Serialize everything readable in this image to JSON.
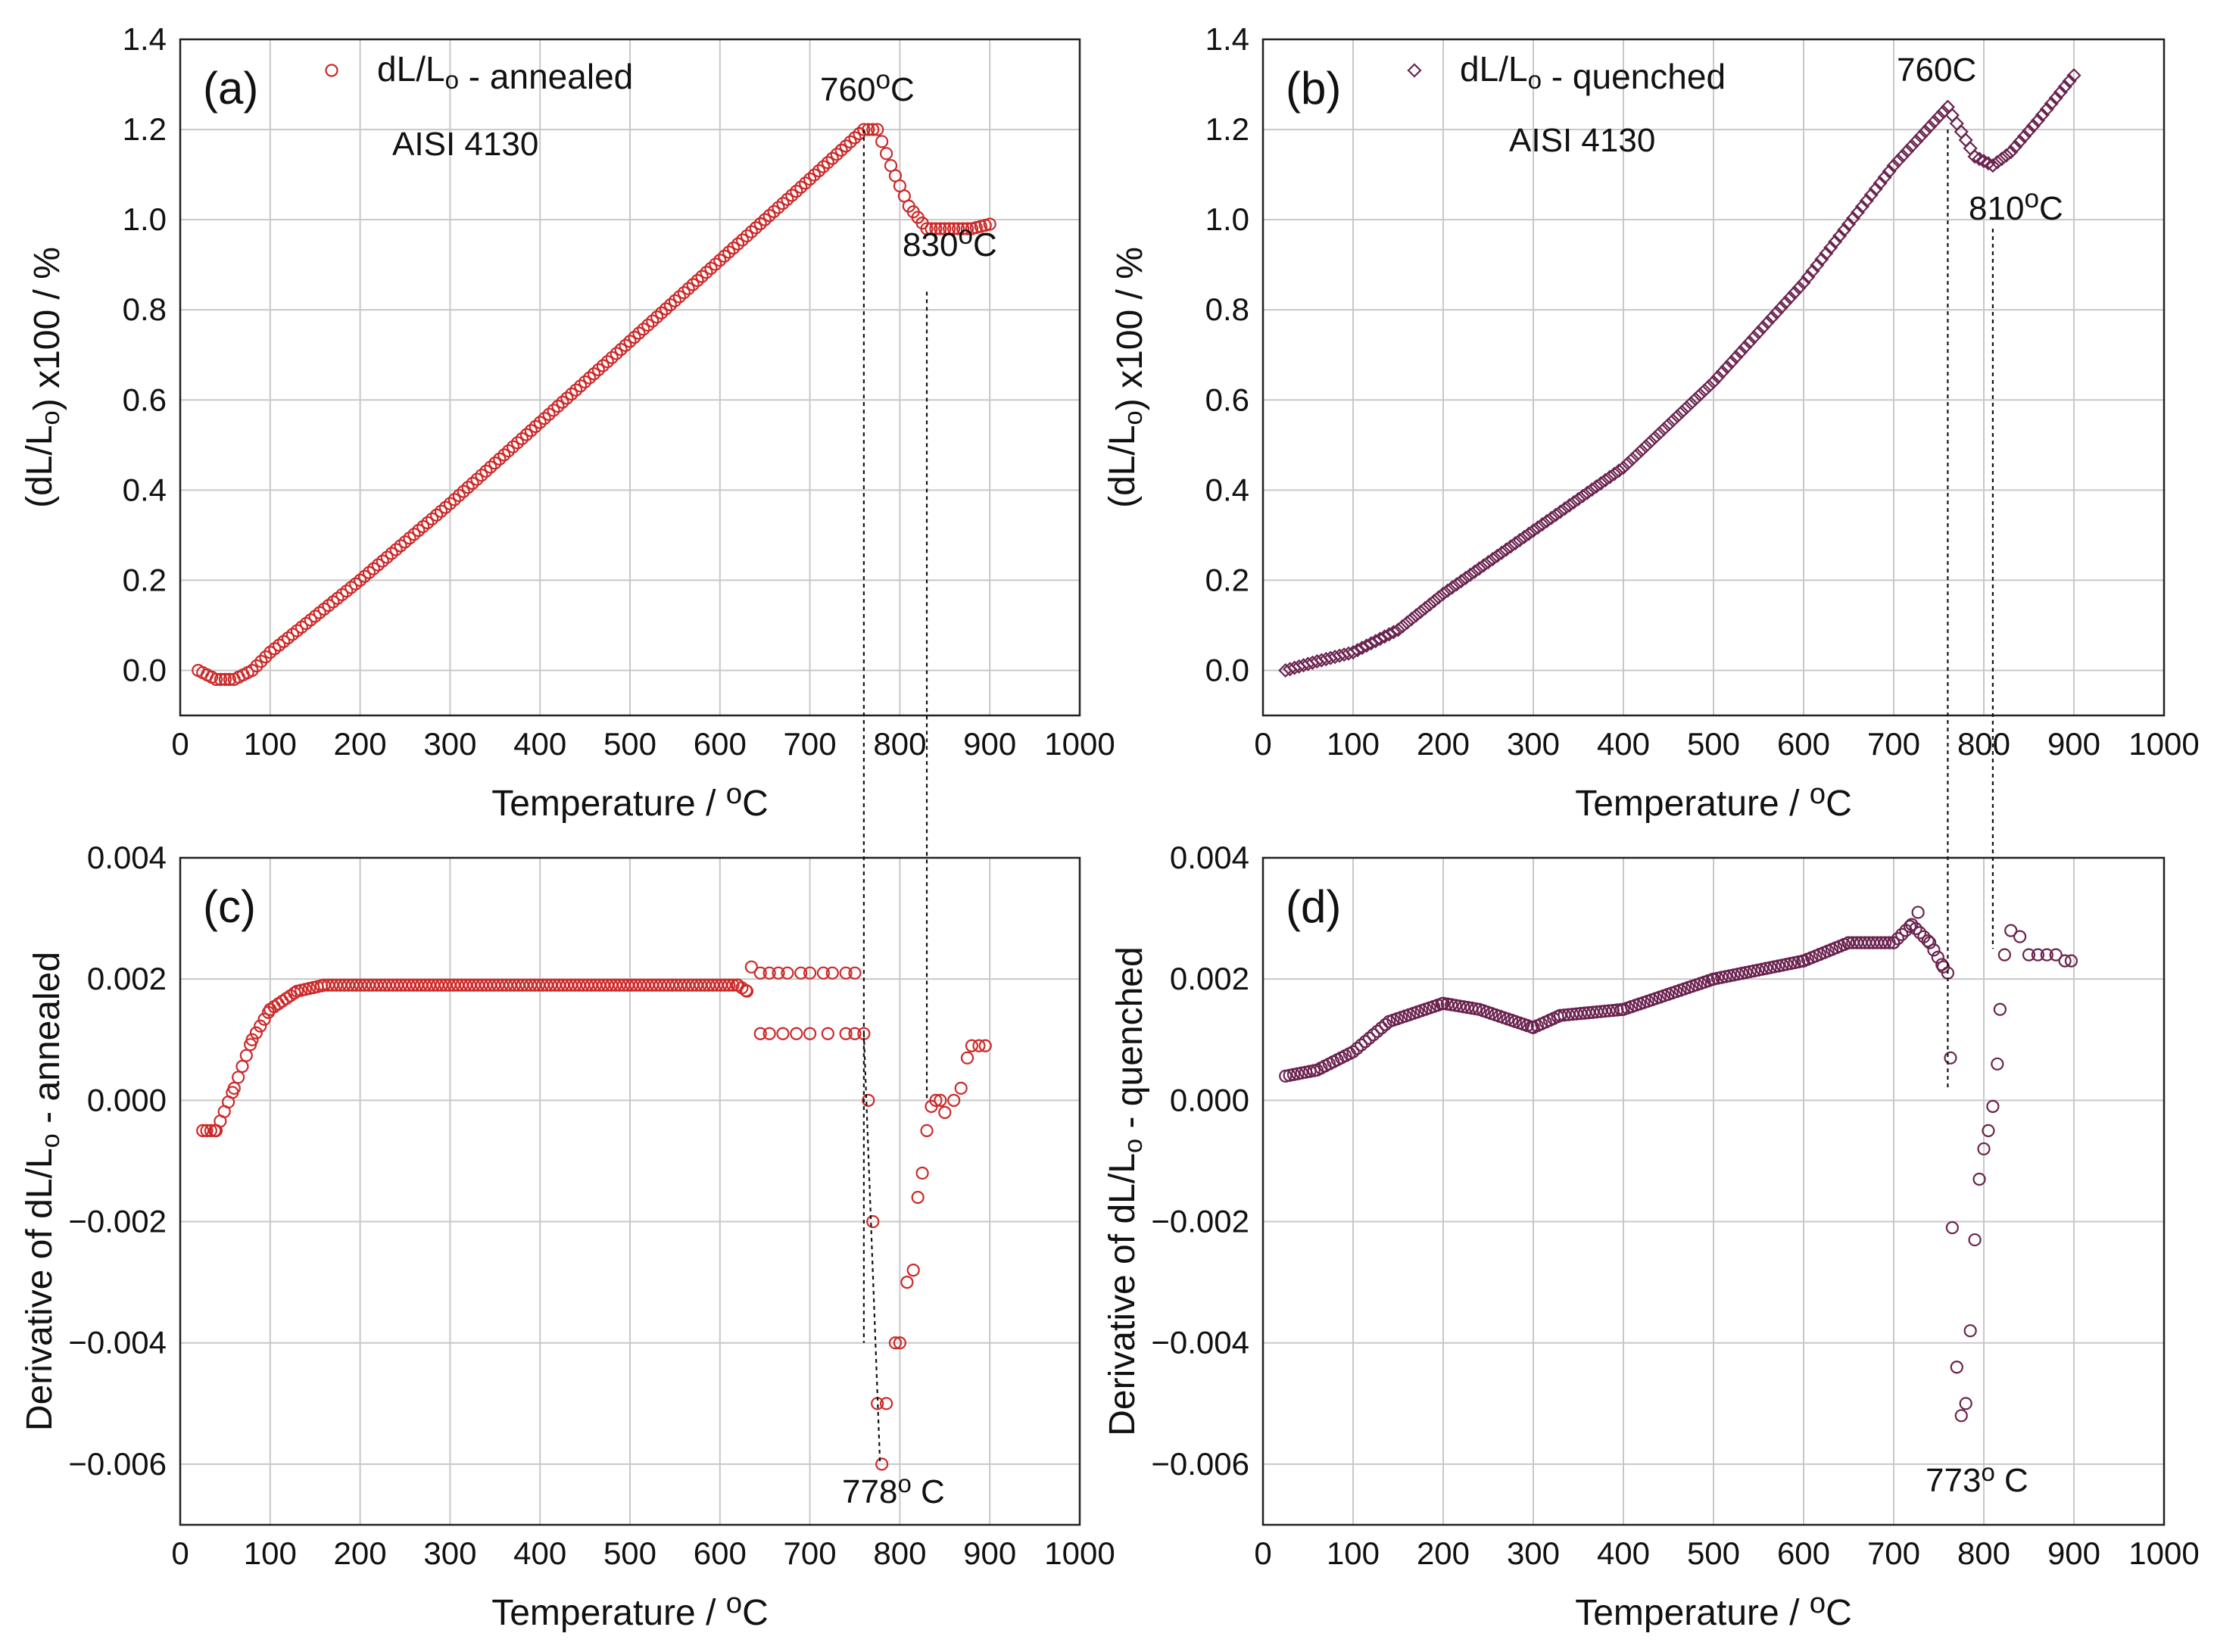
{
  "colors": {
    "annealed": "#cc2a2a",
    "quenched": "#6b2450",
    "grid": "#c8c8c8",
    "text": "#111111"
  },
  "chart_data": [
    {
      "id": "a",
      "type": "scatter",
      "panel_label": "(a)",
      "legend": "dL/Lo - annealed",
      "marker": "circle",
      "xlabel": "Temperature  / oC",
      "ylabel": "(dL/Lo) x100  / %",
      "xlim": [
        0,
        1000
      ],
      "ylim": [
        -0.1,
        1.4
      ],
      "xticks": [
        "0",
        "100",
        "200",
        "300",
        "400",
        "500",
        "600",
        "700",
        "800",
        "900",
        "1000"
      ],
      "yticks": [
        "0.0",
        "0.2",
        "0.4",
        "0.6",
        "0.8",
        "1.0",
        "1.2",
        "1.4"
      ],
      "annotations": [
        "AISI 4130",
        "760oC",
        "830oC"
      ],
      "curve": [
        [
          20,
          0.0
        ],
        [
          40,
          -0.02
        ],
        [
          60,
          -0.02
        ],
        [
          80,
          0.0
        ],
        [
          100,
          0.04
        ],
        [
          150,
          0.12
        ],
        [
          200,
          0.2
        ],
        [
          300,
          0.37
        ],
        [
          400,
          0.55
        ],
        [
          500,
          0.73
        ],
        [
          600,
          0.91
        ],
        [
          700,
          1.09
        ],
        [
          760,
          1.2
        ],
        [
          775,
          1.2
        ],
        [
          790,
          1.12
        ],
        [
          810,
          1.03
        ],
        [
          830,
          0.98
        ],
        [
          850,
          0.98
        ],
        [
          880,
          0.98
        ],
        [
          900,
          0.99
        ]
      ],
      "guides": [
        [
          760,
          1.2,
          -0.004
        ],
        [
          830,
          0.84,
          0.0
        ]
      ]
    },
    {
      "id": "b",
      "type": "scatter",
      "panel_label": "(b)",
      "legend": "dL/Lo  - quenched",
      "marker": "diamond",
      "xlabel": "Temperature  / oC",
      "ylabel": "(dL/Lo) x100  / %",
      "xlim": [
        0,
        1000
      ],
      "ylim": [
        -0.1,
        1.4
      ],
      "xticks": [
        "0",
        "100",
        "200",
        "300",
        "400",
        "500",
        "600",
        "700",
        "800",
        "900",
        "1000"
      ],
      "yticks": [
        "0.0",
        "0.2",
        "0.4",
        "0.6",
        "0.8",
        "1.0",
        "1.2",
        "1.4"
      ],
      "annotations": [
        "AISI 4130",
        "760C",
        "810oC"
      ],
      "curve": [
        [
          25,
          0.0
        ],
        [
          60,
          0.02
        ],
        [
          100,
          0.04
        ],
        [
          150,
          0.09
        ],
        [
          200,
          0.17
        ],
        [
          300,
          0.31
        ],
        [
          400,
          0.45
        ],
        [
          500,
          0.64
        ],
        [
          600,
          0.86
        ],
        [
          700,
          1.12
        ],
        [
          760,
          1.25
        ],
        [
          790,
          1.14
        ],
        [
          810,
          1.12
        ],
        [
          830,
          1.15
        ],
        [
          860,
          1.22
        ],
        [
          900,
          1.32
        ]
      ],
      "guides": [
        [
          760,
          1.2,
          0.0002
        ],
        [
          810,
          0.98,
          0.0025
        ]
      ]
    },
    {
      "id": "c",
      "type": "scatter",
      "panel_label": "(c)",
      "marker": "circle",
      "xlabel": "Temperature  / oC",
      "ylabel": "Derivative of dL/Lo - annealed",
      "xlim": [
        0,
        1000
      ],
      "ylim": [
        -0.007,
        0.004
      ],
      "xticks": [
        "0",
        "100",
        "200",
        "300",
        "400",
        "500",
        "600",
        "700",
        "800",
        "900",
        "1000"
      ],
      "yticks": [
        "0.004",
        "0.002",
        "0.000",
        "−0.002",
        "−0.004",
        "−0.006"
      ],
      "annotations": [
        "778o C"
      ],
      "curve": [
        [
          25,
          -0.0005
        ],
        [
          40,
          -0.0005
        ],
        [
          60,
          0.0002
        ],
        [
          80,
          0.001
        ],
        [
          100,
          0.0015
        ],
        [
          130,
          0.0018
        ],
        [
          160,
          0.0019
        ],
        [
          620,
          0.0019
        ],
        [
          630,
          0.0018
        ]
      ],
      "points": [
        [
          635,
          0.0022
        ],
        [
          645,
          0.0021
        ],
        [
          655,
          0.0021
        ],
        [
          665,
          0.0021
        ],
        [
          675,
          0.0021
        ],
        [
          690,
          0.0021
        ],
        [
          700,
          0.0021
        ],
        [
          715,
          0.0021
        ],
        [
          725,
          0.0021
        ],
        [
          740,
          0.0021
        ],
        [
          750,
          0.0021
        ],
        [
          645,
          0.0011
        ],
        [
          655,
          0.0011
        ],
        [
          670,
          0.0011
        ],
        [
          685,
          0.0011
        ],
        [
          700,
          0.0011
        ],
        [
          720,
          0.0011
        ],
        [
          740,
          0.0011
        ],
        [
          750,
          0.0011
        ],
        [
          760,
          0.0011
        ],
        [
          765,
          0.0
        ],
        [
          770,
          -0.002
        ],
        [
          775,
          -0.005
        ],
        [
          780,
          -0.006
        ],
        [
          785,
          -0.005
        ],
        [
          795,
          -0.004
        ],
        [
          800,
          -0.004
        ],
        [
          808,
          -0.003
        ],
        [
          815,
          -0.0028
        ],
        [
          820,
          -0.0016
        ],
        [
          825,
          -0.0012
        ],
        [
          830,
          -0.0005
        ],
        [
          835,
          -0.0001
        ],
        [
          840,
          0.0
        ],
        [
          845,
          0.0
        ],
        [
          850,
          -0.0002
        ],
        [
          860,
          0.0
        ],
        [
          868,
          0.0002
        ],
        [
          875,
          0.0007
        ],
        [
          880,
          0.0009
        ],
        [
          888,
          0.0009
        ],
        [
          895,
          0.0009
        ]
      ]
    },
    {
      "id": "d",
      "type": "scatter",
      "panel_label": "(d)",
      "marker": "circle",
      "xlabel": "Temperature  / oC",
      "ylabel": "Derivative of dL/Lo - quenched",
      "xlim": [
        0,
        1000
      ],
      "ylim": [
        -0.007,
        0.004
      ],
      "xticks": [
        "0",
        "100",
        "200",
        "300",
        "400",
        "500",
        "600",
        "700",
        "800",
        "900",
        "1000"
      ],
      "yticks": [
        "0.004",
        "0.002",
        "0.000",
        "−0.002",
        "−0.004",
        "−0.006"
      ],
      "annotations": [
        "773o C"
      ],
      "curve": [
        [
          25,
          0.0004
        ],
        [
          60,
          0.0005
        ],
        [
          100,
          0.0008
        ],
        [
          140,
          0.0013
        ],
        [
          200,
          0.0016
        ],
        [
          240,
          0.0015
        ],
        [
          280,
          0.0013
        ],
        [
          300,
          0.0012
        ],
        [
          330,
          0.0014
        ],
        [
          400,
          0.0015
        ],
        [
          500,
          0.002
        ],
        [
          600,
          0.0023
        ],
        [
          650,
          0.0026
        ],
        [
          700,
          0.0026
        ],
        [
          720,
          0.0029
        ],
        [
          740,
          0.0026
        ],
        [
          755,
          0.0022
        ]
      ],
      "points": [
        [
          727,
          0.0031
        ],
        [
          760,
          0.0021
        ],
        [
          763,
          0.0007
        ],
        [
          765,
          -0.0021
        ],
        [
          770,
          -0.0044
        ],
        [
          775,
          -0.0052
        ],
        [
          780,
          -0.005
        ],
        [
          785,
          -0.0038
        ],
        [
          790,
          -0.0023
        ],
        [
          795,
          -0.0013
        ],
        [
          800,
          -0.0008
        ],
        [
          805,
          -0.0005
        ],
        [
          810,
          -0.0001
        ],
        [
          815,
          0.0006
        ],
        [
          818,
          0.0015
        ],
        [
          823,
          0.0024
        ],
        [
          830,
          0.0028
        ],
        [
          840,
          0.0027
        ],
        [
          850,
          0.0024
        ],
        [
          860,
          0.0024
        ],
        [
          870,
          0.0024
        ],
        [
          880,
          0.0024
        ],
        [
          890,
          0.0023
        ],
        [
          897,
          0.0023
        ]
      ]
    }
  ]
}
